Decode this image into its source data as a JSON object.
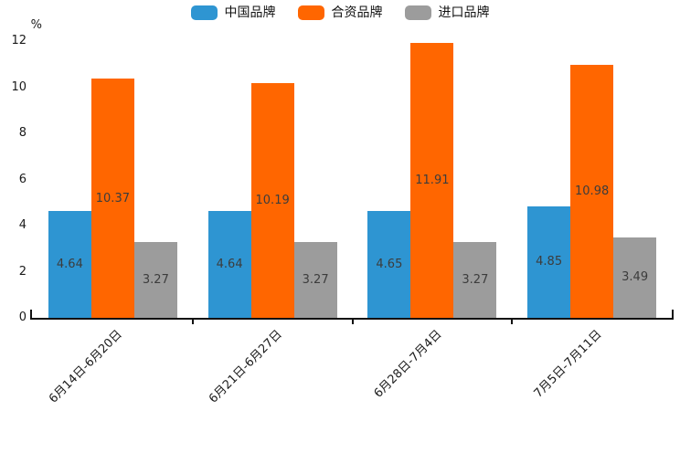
{
  "chart_data": {
    "type": "bar",
    "title": "",
    "unit": "%",
    "categories": [
      "6月14日-6月20日",
      "6月21日-6月27日",
      "6月28日-7月4日",
      "7月5日-7月11日"
    ],
    "series": [
      {
        "name": "中国品牌",
        "color": "#2E95D2",
        "values": [
          4.64,
          4.64,
          4.65,
          4.85
        ]
      },
      {
        "name": "合资品牌",
        "color": "#FF6600",
        "values": [
          10.37,
          10.19,
          11.91,
          10.98
        ]
      },
      {
        "name": "进口品牌",
        "color": "#9C9C9C",
        "values": [
          3.27,
          3.27,
          3.27,
          3.49
        ]
      }
    ],
    "ylim": [
      0,
      12
    ],
    "yticks": [
      0,
      2,
      4,
      6,
      8,
      10,
      12
    ],
    "grid": false,
    "legend_position": "top",
    "value_labels": true,
    "value_label_format": "0.00"
  }
}
